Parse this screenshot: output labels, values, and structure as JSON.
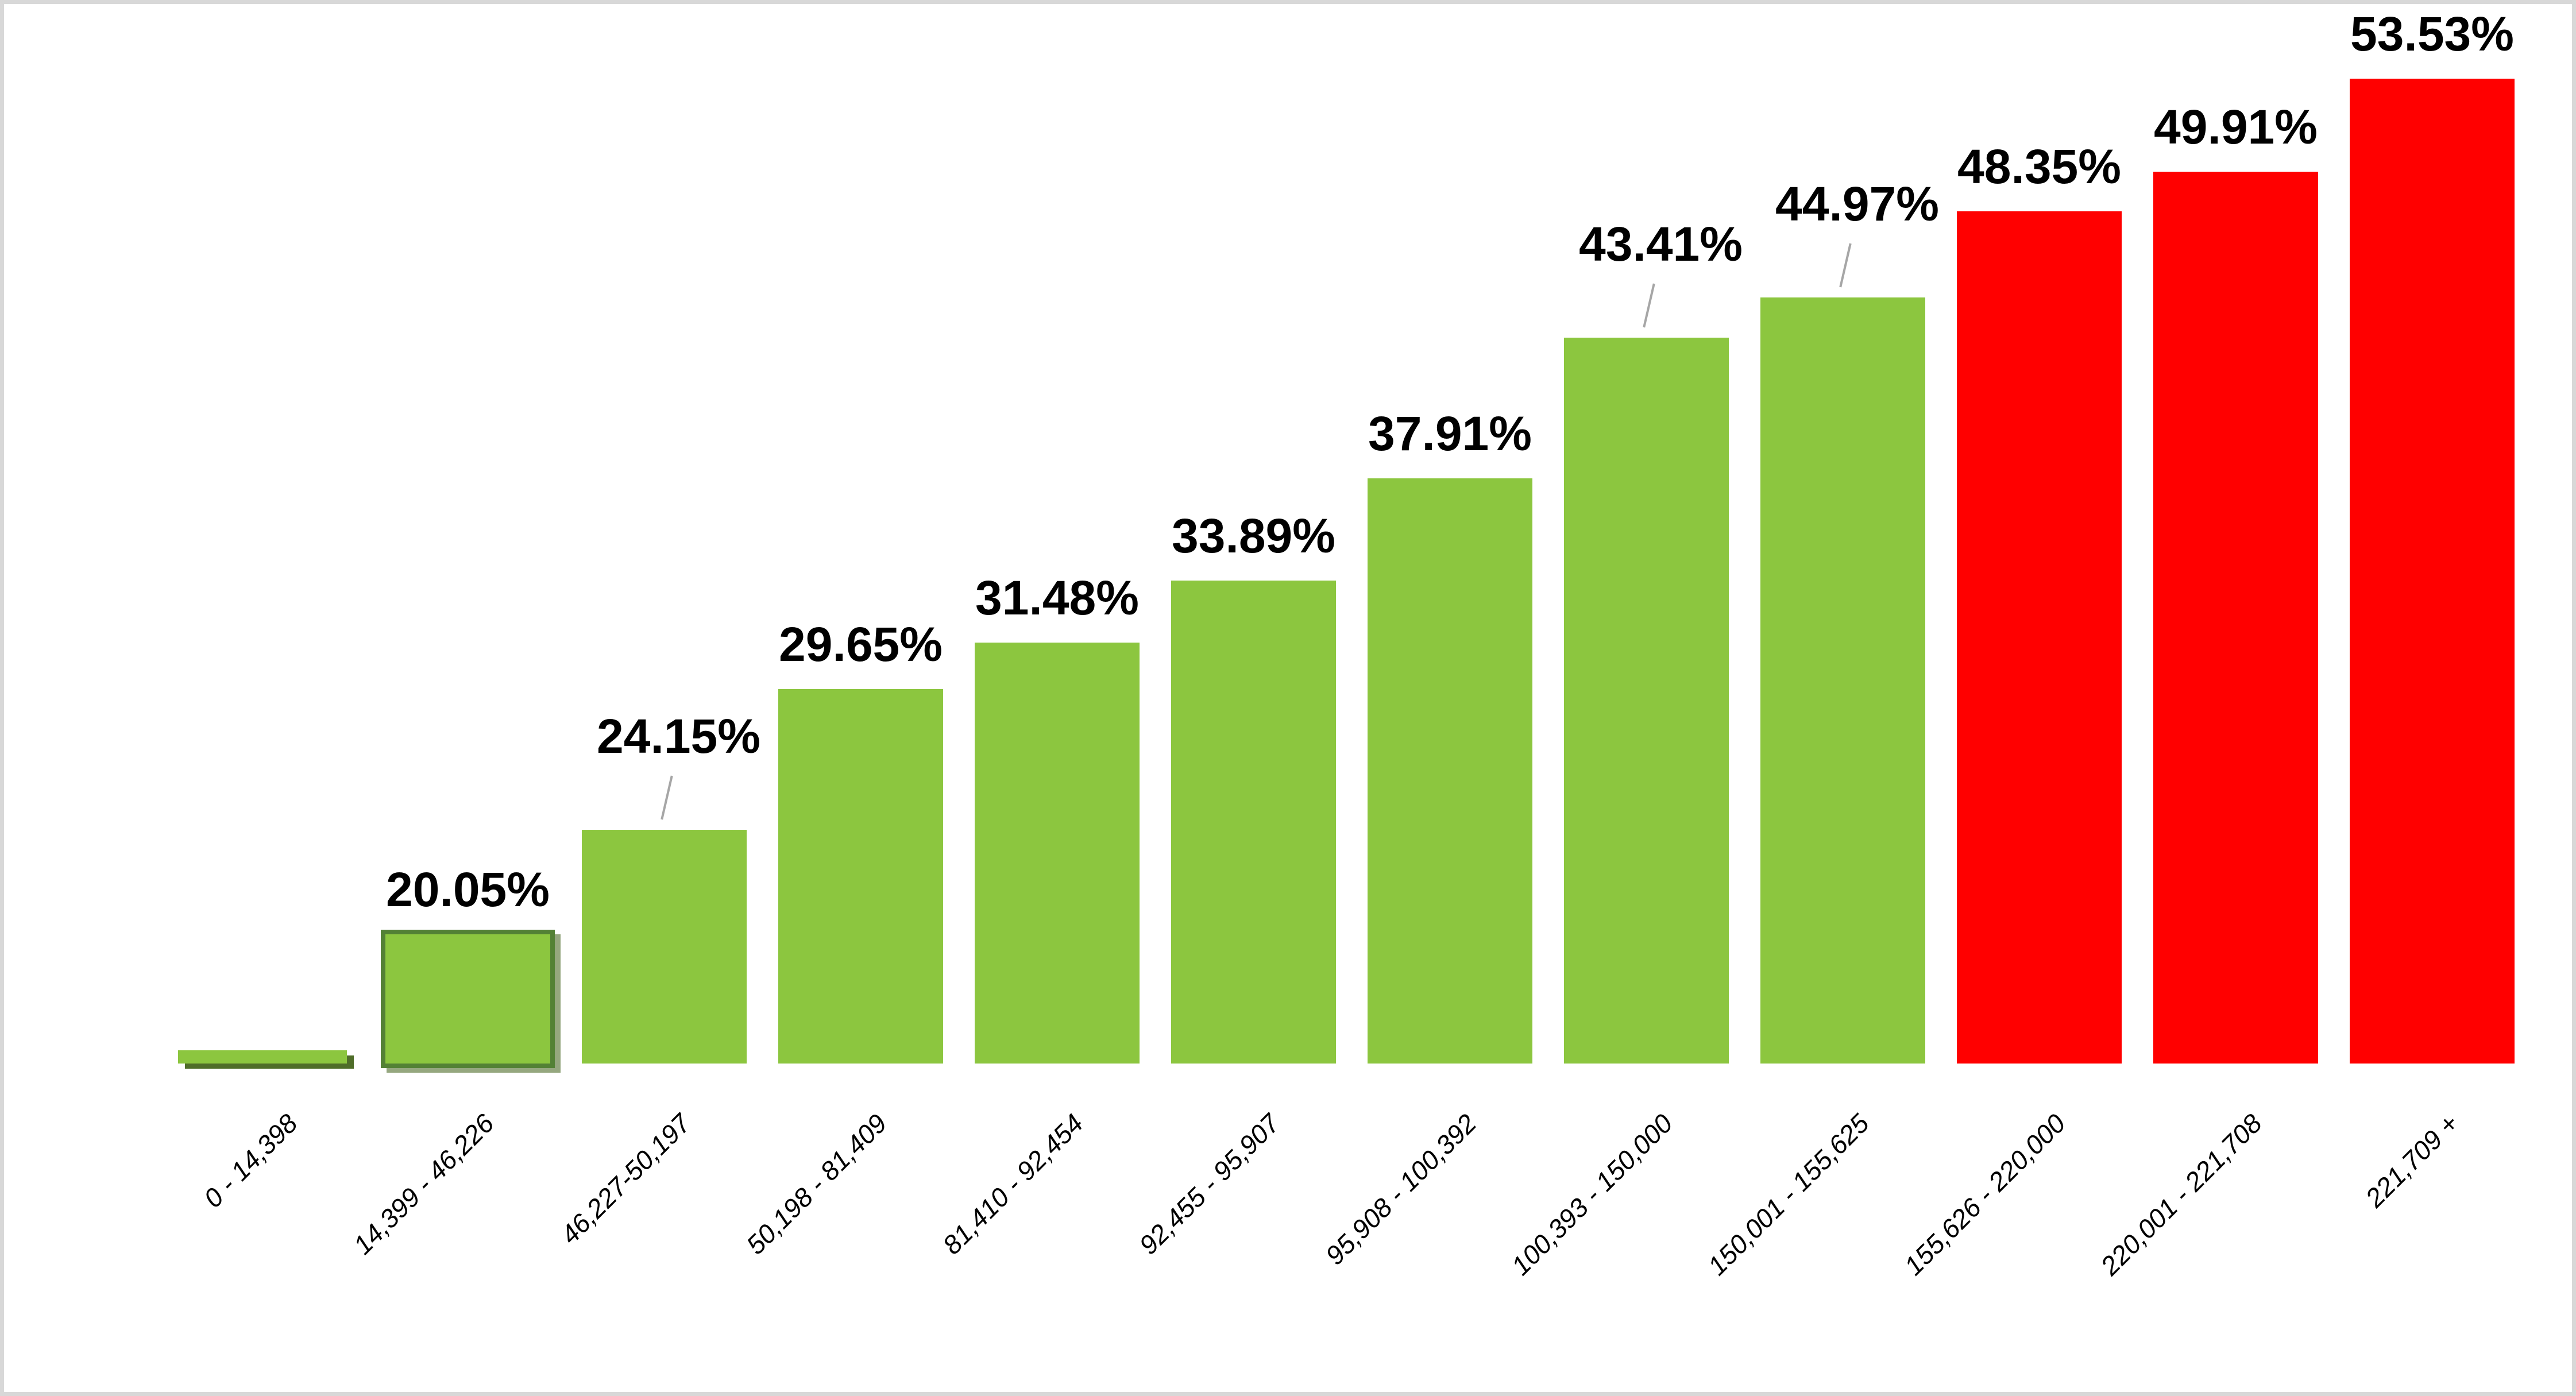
{
  "chart_data": {
    "type": "bar",
    "title": "",
    "xlabel": "",
    "ylabel": "",
    "grid": false,
    "legend": "none",
    "x_tick_rotation": -45,
    "ylim": [
      15,
      55
    ],
    "categories": [
      "0 - 14,398",
      "14,399 - 46,226",
      "46,227-50,197",
      "50,198 - 81,409",
      "81,410 - 92,454",
      "92,455 - 95,907",
      "95,908 - 100,392",
      "100,393 - 150,000",
      "150,001 - 155,625",
      "155,626 - 220,000",
      "220,001 - 221,708",
      "221,709 +"
    ],
    "values": [
      0,
      20.05,
      24.15,
      29.65,
      31.48,
      33.89,
      37.91,
      43.41,
      44.97,
      48.35,
      49.91,
      53.53
    ],
    "bar_labels": [
      "",
      "20.05%",
      "24.15%",
      "29.65%",
      "31.48%",
      "33.89%",
      "37.91%",
      "43.41%",
      "44.97%",
      "48.35%",
      "49.91%",
      "53.53%"
    ],
    "bar_colors": [
      "green",
      "green",
      "green",
      "green",
      "green",
      "green",
      "green",
      "green",
      "green",
      "red",
      "red",
      "red"
    ],
    "palette": {
      "green": "#8CC63F",
      "red": "#FF0000",
      "highlight_border": "#538135",
      "shadow": "#4F6D29",
      "leader_line": "#A6A6A6"
    },
    "annotations": {
      "highlighted_bar_index": 1,
      "first_bar_display": "thin sliver with offset drop shadow",
      "leader_line_bar_indices": [
        2,
        7,
        8
      ]
    }
  }
}
